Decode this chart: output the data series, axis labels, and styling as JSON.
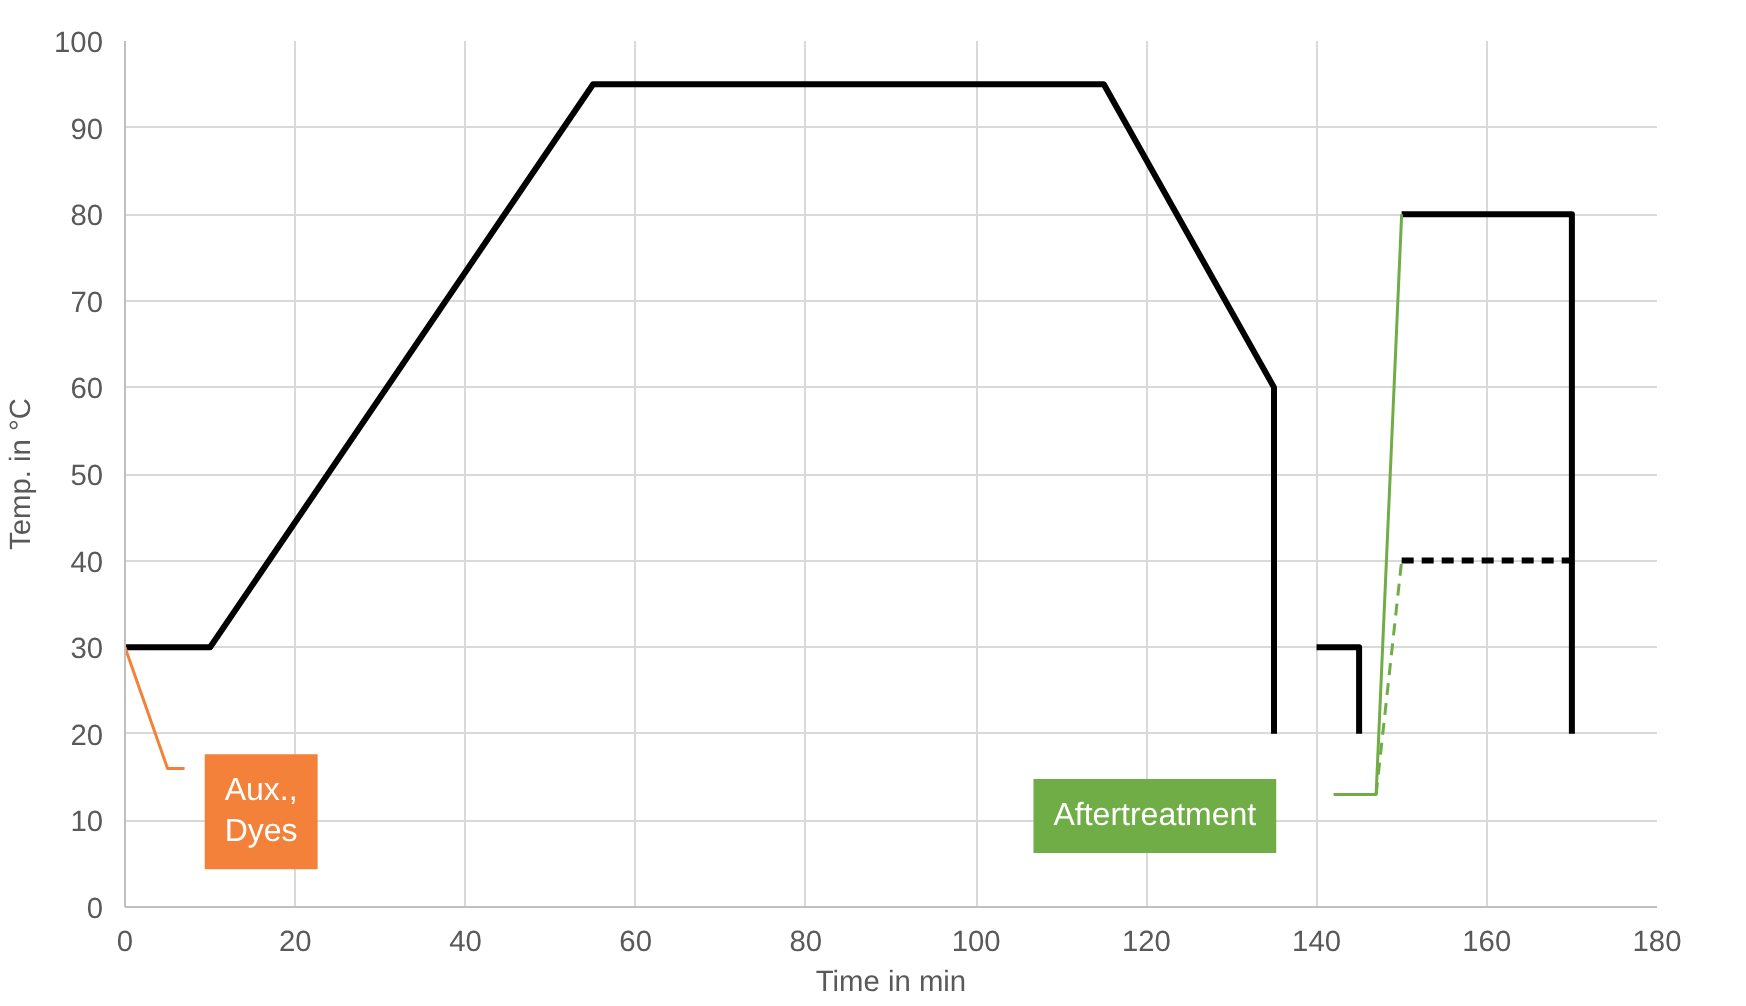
{
  "chart_data": {
    "type": "line",
    "xlabel": "Time in min",
    "ylabel": "Temp. in °C",
    "xlim": [
      0,
      180
    ],
    "xticks": [
      0,
      20,
      40,
      60,
      80,
      100,
      120,
      140,
      160,
      180
    ],
    "ylim": [
      0,
      100
    ],
    "yticks": [
      0,
      10,
      20,
      30,
      40,
      50,
      60,
      70,
      80,
      90,
      100
    ],
    "grid": true,
    "marker": "none",
    "series": [
      {
        "color": "#000000",
        "x": [
          0,
          10,
          55,
          115,
          135,
          135
        ],
        "values": [
          30,
          30,
          95,
          95,
          60,
          20
        ]
      },
      {
        "color": "#000000",
        "x": [
          140,
          145,
          145
        ],
        "values": [
          30,
          30,
          20
        ]
      },
      {
        "color": "#000000",
        "x": [
          150,
          170,
          170
        ],
        "values": [
          80,
          80,
          20
        ]
      },
      {
        "color": "#000000",
        "x": [
          150,
          170
        ],
        "values": [
          40,
          40
        ],
        "line_style": "dashed"
      },
      {
        "color": "#f4813a",
        "x": [
          0,
          5,
          7
        ],
        "values": [
          30,
          16,
          16
        ]
      },
      {
        "color": "#70ad47",
        "x": [
          142,
          147,
          150
        ],
        "values": [
          13,
          13,
          80
        ]
      },
      {
        "color": "#70ad47",
        "x": [
          147,
          150
        ],
        "values": [
          13,
          40
        ],
        "line_style": "dashed"
      }
    ],
    "annotations": [
      "Aux., Dyes",
      "Aftertreatment"
    ]
  }
}
